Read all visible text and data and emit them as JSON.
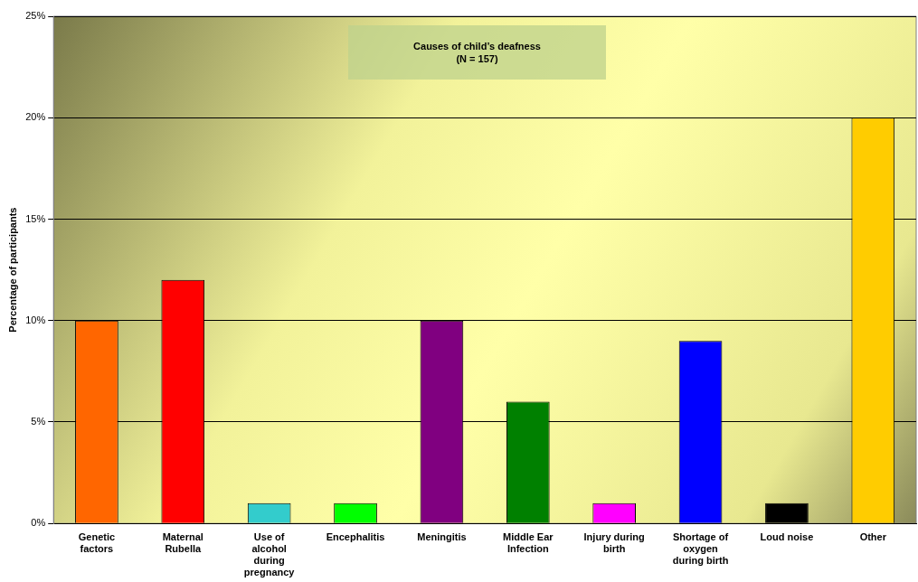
{
  "chart_data": {
    "type": "bar",
    "title": "Causes of child’s deafness",
    "subtitle": "(N = 157)",
    "ylabel": "Percentage of participants",
    "categories": [
      "Genetic factors",
      "Maternal Rubella",
      "Use of alcohol during pregnancy",
      "Encephalitis",
      "Meningitis",
      "Middle Ear Infection",
      "Injury during birth",
      "Shortage of oxygen during birth",
      "Loud noise",
      "Other"
    ],
    "values": [
      10,
      12,
      1,
      1,
      10,
      6,
      1,
      9,
      1,
      20
    ],
    "colors": [
      "#ff6600",
      "#ff0000",
      "#33cccc",
      "#00ff00",
      "#800080",
      "#008000",
      "#ff00ff",
      "#0000ff",
      "#000000",
      "#ffcc00"
    ],
    "ylim": [
      0,
      25
    ],
    "yticks": [
      {
        "value": 0,
        "label": "0%"
      },
      {
        "value": 5,
        "label": "5%"
      },
      {
        "value": 10,
        "label": "10%"
      },
      {
        "value": 15,
        "label": "15%"
      },
      {
        "value": 20,
        "label": "20%"
      },
      {
        "value": 25,
        "label": "25%"
      }
    ],
    "grid": "y",
    "legend": false
  }
}
